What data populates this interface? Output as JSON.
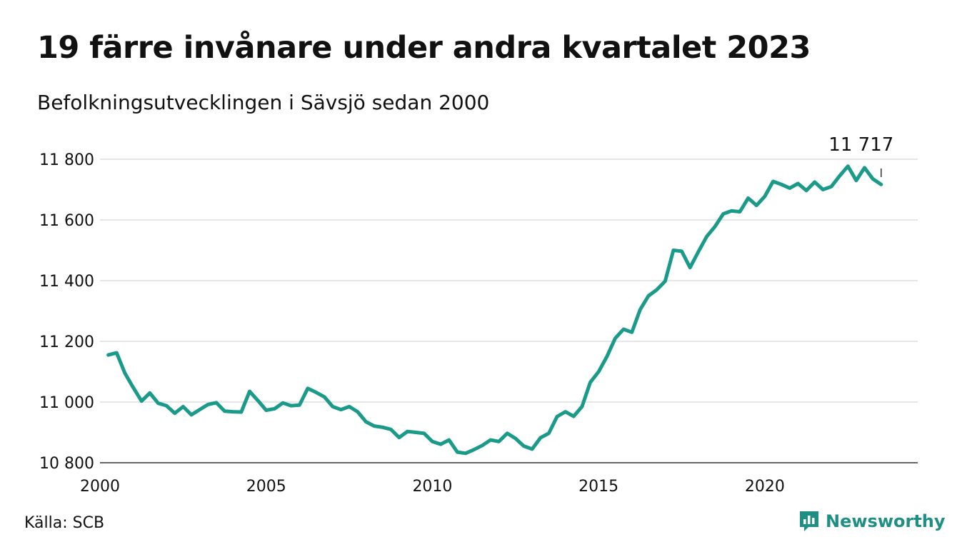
{
  "title": "19 färre invånare under andra kvartalet 2023",
  "subtitle": "Befolkningsutvecklingen i Sävsjö sedan 2000",
  "source": "Källa: SCB",
  "brand": {
    "name": "Newsworthy",
    "icon": "newsworthy-logo-icon",
    "color": "#1f8f84"
  },
  "chart_data": {
    "type": "line",
    "title": "19 färre invånare under andra kvartalet 2023",
    "subtitle": "Befolkningsutvecklingen i Sävsjö sedan 2000",
    "line_color": "#1a9a89",
    "grid": true,
    "xlim": [
      2000,
      2024.6
    ],
    "ylim": [
      10800,
      11800
    ],
    "x_ticks": [
      2000,
      2005,
      2010,
      2015,
      2020
    ],
    "x_tick_labels": [
      "2000",
      "2005",
      "2010",
      "2015",
      "2020"
    ],
    "y_ticks": [
      10800,
      11000,
      11200,
      11400,
      11600,
      11800
    ],
    "y_tick_labels": [
      "10 800",
      "11 000",
      "11 200",
      "11 400",
      "11 600",
      "11 800"
    ],
    "annotation": {
      "x": 2023.5,
      "label": "11 717"
    },
    "series": [
      {
        "x": [
          2000.25,
          2000.5,
          2000.75,
          2001.0,
          2001.25,
          2001.5,
          2001.75,
          2002.0,
          2002.25,
          2002.5,
          2002.75,
          2003.0,
          2003.25,
          2003.5,
          2003.75,
          2004.0,
          2004.25,
          2004.5,
          2004.75,
          2005.0,
          2005.25,
          2005.5,
          2005.75,
          2006.0,
          2006.25,
          2006.5,
          2006.75,
          2007.0,
          2007.25,
          2007.5,
          2007.75,
          2008.0,
          2008.25,
          2008.5,
          2008.75,
          2009.0,
          2009.25,
          2009.5,
          2009.75,
          2010.0,
          2010.25,
          2010.5,
          2010.75,
          2011.0,
          2011.25,
          2011.5,
          2011.75,
          2012.0,
          2012.25,
          2012.5,
          2012.75,
          2013.0,
          2013.25,
          2013.5,
          2013.75,
          2014.0,
          2014.25,
          2014.5,
          2014.75,
          2015.0,
          2015.25,
          2015.5,
          2015.75,
          2016.0,
          2016.25,
          2016.5,
          2016.75,
          2017.0,
          2017.25,
          2017.5,
          2017.75,
          2018.0,
          2018.25,
          2018.5,
          2018.75,
          2019.0,
          2019.25,
          2019.5,
          2019.75,
          2020.0,
          2020.25,
          2020.5,
          2020.75,
          2021.0,
          2021.25,
          2021.5,
          2021.75,
          2022.0,
          2022.25,
          2022.5,
          2022.75,
          2023.0,
          2023.25,
          2023.5
        ],
        "y": [
          11155,
          11162,
          11095,
          11048,
          11003,
          11030,
          10996,
          10988,
          10963,
          10985,
          10958,
          10975,
          10992,
          10998,
          10970,
          10968,
          10967,
          11035,
          11005,
          10973,
          10978,
          10997,
          10988,
          10990,
          11045,
          11032,
          11017,
          10985,
          10975,
          10985,
          10968,
          10935,
          10921,
          10917,
          10910,
          10883,
          10903,
          10900,
          10897,
          10870,
          10861,
          10875,
          10835,
          10831,
          10843,
          10857,
          10875,
          10870,
          10897,
          10880,
          10855,
          10845,
          10882,
          10897,
          10952,
          10968,
          10953,
          10985,
          11065,
          11100,
          11150,
          11210,
          11240,
          11230,
          11305,
          11350,
          11370,
          11398,
          11500,
          11497,
          11443,
          11495,
          11545,
          11578,
          11620,
          11630,
          11627,
          11672,
          11648,
          11678,
          11727,
          11717,
          11705,
          11720,
          11697,
          11725,
          11700,
          11710,
          11745,
          11777,
          11730,
          11772,
          11735,
          11717
        ]
      }
    ]
  }
}
